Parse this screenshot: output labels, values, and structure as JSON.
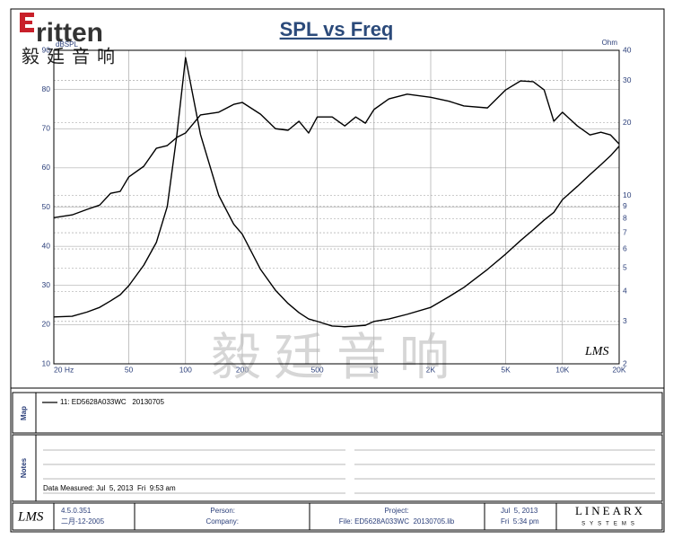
{
  "header": {
    "logo": "ritten",
    "logo_cn": "毅廷音响"
  },
  "chart_data": {
    "type": "line",
    "title": "SPL vs Freq",
    "y_label": "dBSPL",
    "y2_label": "Ohm",
    "watermark": "毅廷音响",
    "signature": "LMS",
    "x": [
      20,
      25,
      30,
      35,
      40,
      45,
      50,
      60,
      70,
      80,
      90,
      100,
      120,
      150,
      180,
      200,
      250,
      300,
      350,
      400,
      450,
      500,
      600,
      700,
      800,
      900,
      1000,
      1200,
      1500,
      2000,
      2500,
      3000,
      4000,
      5000,
      6000,
      7000,
      8000,
      9000,
      10000,
      12000,
      14000,
      16000,
      18000,
      20000
    ],
    "xlog": true,
    "y2log": true,
    "grid": true,
    "xlim": [
      20,
      20000
    ],
    "xticks": [
      {
        "value": 20,
        "label": "20 Hz"
      },
      50,
      100,
      200,
      500,
      {
        "value": 1000,
        "label": "1K"
      },
      {
        "value": 2000,
        "label": "2K"
      },
      {
        "value": 5000,
        "label": "5K"
      },
      {
        "value": 10000,
        "label": "10K"
      },
      {
        "value": 20000,
        "label": "20K"
      }
    ],
    "ylim": [
      10,
      90
    ],
    "yticks": [
      10,
      20,
      30,
      40,
      50,
      60,
      70,
      80,
      90
    ],
    "y2lim": [
      2,
      40
    ],
    "y2ticks": [
      2,
      3,
      4,
      5,
      6,
      7,
      8,
      9,
      10,
      20,
      30,
      40
    ],
    "series": [
      {
        "color": "#000000",
        "values": [
          47.3,
          48,
          49.4,
          50.5,
          53.5,
          54,
          57.7,
          60.4,
          65,
          65.7,
          67.8,
          68.9,
          73.5,
          74.2,
          76.2,
          76.7,
          73.7,
          70,
          69.6,
          71.9,
          68.9,
          73,
          73,
          70.7,
          73,
          71.4,
          74.9,
          77.6,
          78.8,
          78,
          77,
          75.8,
          75.3,
          79.9,
          82.2,
          82,
          79.9,
          71.9,
          74.2,
          70.7,
          68.4,
          69.1,
          68.4,
          66.1
        ]
      },
      {
        "color": "#000000",
        "axis": "y2",
        "values": [
          3.13,
          3.15,
          3.28,
          3.43,
          3.65,
          3.87,
          4.22,
          5.13,
          6.38,
          9.0,
          17.9,
          37.3,
          17.9,
          10,
          7.6,
          6.9,
          4.93,
          4.04,
          3.56,
          3.26,
          3.07,
          3.0,
          2.87,
          2.85,
          2.87,
          2.89,
          3.0,
          3.07,
          3.21,
          3.43,
          3.8,
          4.15,
          4.93,
          5.71,
          6.5,
          7.2,
          7.9,
          8.5,
          9.6,
          10.9,
          12.2,
          13.4,
          14.6,
          16.0
        ]
      }
    ]
  },
  "map": {
    "label": "Map",
    "legend": "11: ED5628A033WC   20130705"
  },
  "notes": {
    "label": "Notes",
    "measured": "Data Measured: Jul  5, 2013  Fri  9:53 am"
  },
  "footer": {
    "logo": "LMS",
    "version": "4.5.0.351",
    "build_date": "二月-12-2005",
    "person": "Person:",
    "company": "Company:",
    "project": "Project:",
    "file": "File: ED5628A033WC  20130705.lib",
    "date": "Jul  5, 2013",
    "time": "Fri  5:34 pm",
    "brand": "LINEARX",
    "brand_sub": "SYSTEMS"
  }
}
